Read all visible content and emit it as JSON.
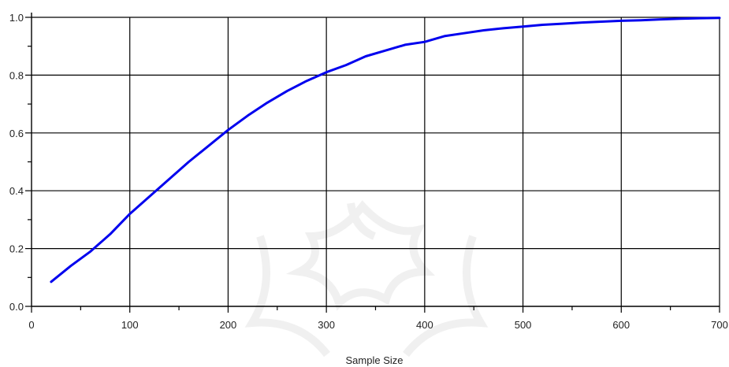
{
  "chart_data": {
    "type": "line",
    "title": "",
    "xlabel": "Sample Size",
    "ylabel": "",
    "xlim": [
      0,
      700
    ],
    "ylim": [
      0,
      1.0
    ],
    "x_ticks": [
      0,
      100,
      200,
      300,
      400,
      500,
      600,
      700
    ],
    "x_tick_labels": [
      "0",
      "100",
      "200",
      "300",
      "400",
      "500",
      "600",
      "700"
    ],
    "y_ticks": [
      0,
      0.2,
      0.4,
      0.6,
      0.8,
      1.0
    ],
    "y_tick_labels": [
      "0.0",
      "0.2",
      "0.4",
      "0.6",
      "0.8",
      "1.0"
    ],
    "grid": true,
    "legend": "none",
    "series": [
      {
        "color": "#0000ee",
        "x": [
          20,
          40,
          60,
          80,
          100,
          120,
          140,
          160,
          180,
          200,
          220,
          240,
          260,
          280,
          300,
          320,
          340,
          360,
          380,
          400,
          420,
          440,
          460,
          480,
          500,
          520,
          540,
          560,
          580,
          600,
          620,
          640,
          660,
          680,
          700
        ],
        "y": [
          0.085,
          0.14,
          0.19,
          0.25,
          0.32,
          0.38,
          0.44,
          0.5,
          0.555,
          0.61,
          0.66,
          0.705,
          0.745,
          0.78,
          0.81,
          0.835,
          0.865,
          0.885,
          0.905,
          0.915,
          0.935,
          0.945,
          0.955,
          0.962,
          0.968,
          0.974,
          0.978,
          0.982,
          0.985,
          0.988,
          0.99,
          0.993,
          0.995,
          0.997,
          0.998
        ]
      }
    ]
  }
}
